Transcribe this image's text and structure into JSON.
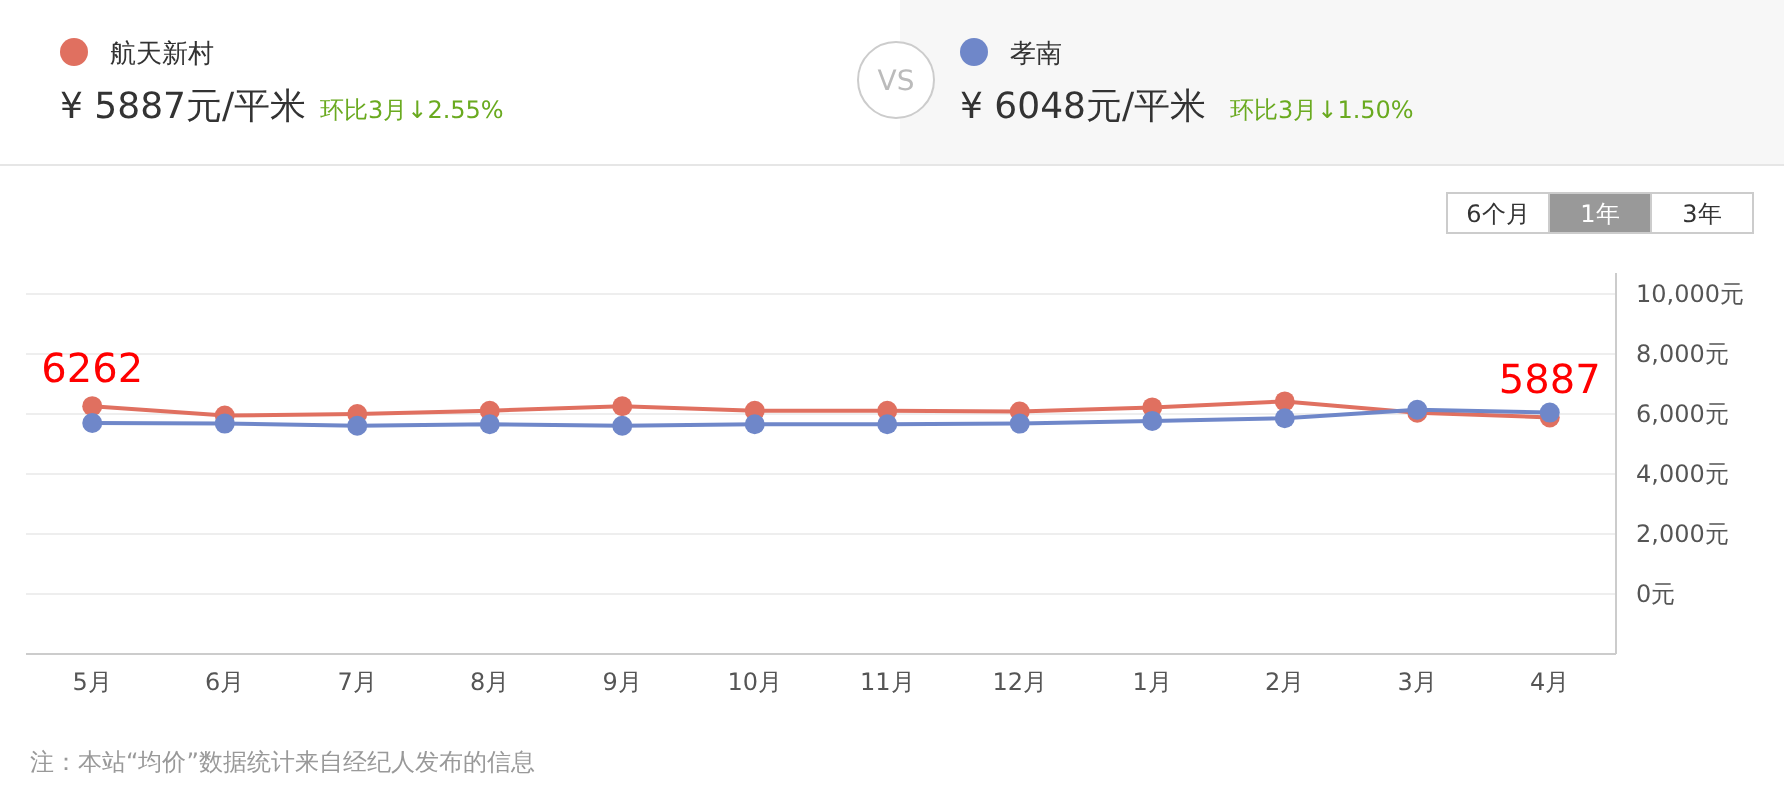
{
  "chart_data": {
    "type": "line",
    "categories": [
      "5月",
      "6月",
      "7月",
      "8月",
      "9月",
      "10月",
      "11月",
      "12月",
      "1月",
      "2月",
      "3月",
      "4月"
    ],
    "series": [
      {
        "name": "航天新村",
        "color": "#e07060",
        "values": [
          6262,
          5950,
          6000,
          6110,
          6260,
          6110,
          6110,
          6085,
          6220,
          6420,
          6041,
          5887
        ]
      },
      {
        "name": "孝南",
        "color": "#6f87c9",
        "values": [
          5700,
          5680,
          5610,
          5660,
          5610,
          5660,
          5660,
          5680,
          5770,
          5860,
          6140,
          6048
        ]
      }
    ],
    "ylim": [
      -2000,
      10700
    ],
    "yticks": [
      {
        "value": 0,
        "label": "0元"
      },
      {
        "value": 2000,
        "label": "2,000元"
      },
      {
        "value": 4000,
        "label": "4,000元"
      },
      {
        "value": 6000,
        "label": "6,000元"
      },
      {
        "value": 8000,
        "label": "8,000元"
      },
      {
        "value": 10000,
        "label": "10,000元"
      }
    ],
    "grid": "y",
    "legend": "top",
    "marker": "circle",
    "line_style": "solid",
    "annotations": [
      "¥ 5887元/平米",
      "环比3月↓2.55%",
      "¥ 6048元/平米",
      "环比3月↓1.50%",
      "VS",
      "6个月",
      "1年",
      "3年",
      {
        "text": "6262",
        "x": "5月",
        "y": 6262
      },
      {
        "text": "5887",
        "x": "4月",
        "y": 5887
      },
      "注：本站“均价”数据统计来自经纪人发布的信息"
    ]
  }
}
